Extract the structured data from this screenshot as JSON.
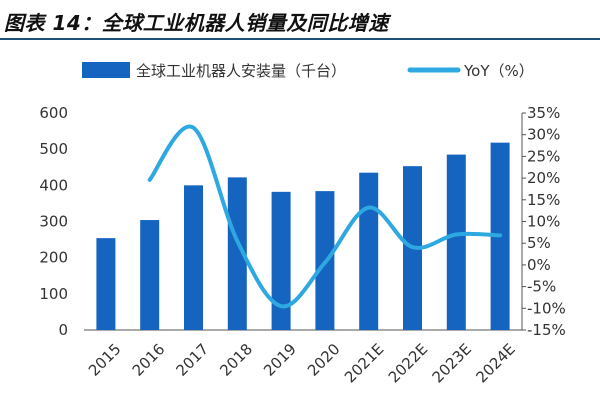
{
  "figure": {
    "title": "图表 14：全球工业机器人销量及同比增速"
  },
  "chart_data": {
    "type": "bar",
    "categories": [
      "2015",
      "2016",
      "2017",
      "2018",
      "2019",
      "2020",
      "2021E",
      "2022E",
      "2023E",
      "2024E"
    ],
    "series": [
      {
        "name": "全球工业机器人安装量（千台）",
        "type": "bar",
        "axis": "left",
        "color": "#1565c0",
        "values": [
          254,
          304,
          400,
          422,
          382,
          384,
          435,
          453,
          485,
          518
        ]
      },
      {
        "name": "YoY（%）",
        "type": "line",
        "axis": "right",
        "color": "#2ea8e0",
        "values": [
          null,
          19.6,
          31.6,
          5.5,
          -9.5,
          0.5,
          13.2,
          4.1,
          7.0,
          6.8
        ]
      }
    ],
    "y_left": {
      "lim": [
        0,
        600
      ],
      "ticks": [
        "0",
        "100",
        "200",
        "300",
        "400",
        "500",
        "600"
      ]
    },
    "y_right": {
      "lim": [
        -15,
        35
      ],
      "ticks": [
        "-15%",
        "-10%",
        "-5%",
        "0%",
        "5%",
        "10%",
        "15%",
        "20%",
        "25%",
        "30%",
        "35%"
      ]
    },
    "legend": {
      "placement": "top",
      "items": [
        "全球工业机器人安装量（千台）",
        "YoY（%）"
      ]
    },
    "grid": false
  }
}
